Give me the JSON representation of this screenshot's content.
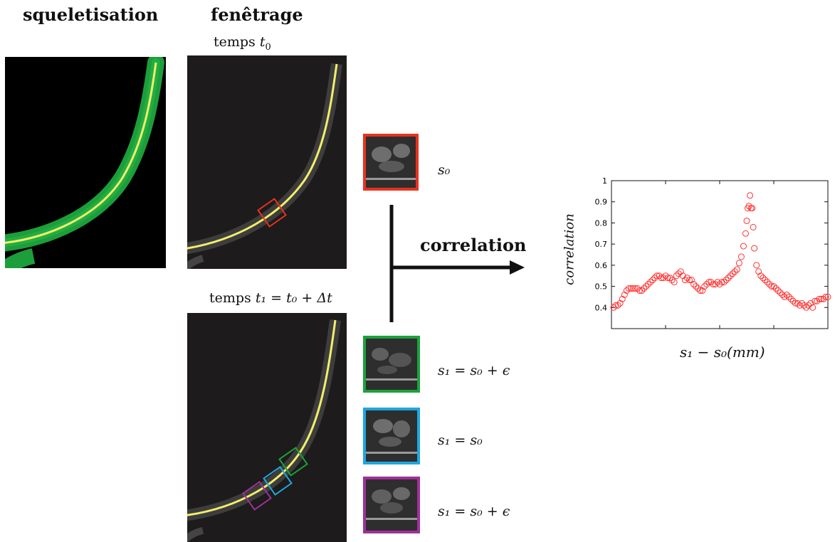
{
  "headings": {
    "skeleton": "squeletisation",
    "windowing": "fenêtrage"
  },
  "time_labels": {
    "t0_prefix": "temps ",
    "t0_var": "t",
    "t0_sub": "0",
    "t1_prefix": "temps ",
    "t1_expr": "t₁ = t₀ + Δt"
  },
  "patch_labels": {
    "red": "s₀",
    "green": "s₁ = s₀ + ϵ",
    "blue": "s₁ = s₀",
    "purple": "s₁ = s₀ + ϵ"
  },
  "arrow_label": "correlation",
  "colors": {
    "root_green": "#1c9e3a",
    "skeleton_yellow": "#f2ef6a",
    "red": "#e8321e",
    "green": "#1aa33a",
    "blue": "#1ea8e0",
    "purple": "#a0309a",
    "marker": "#ff3333"
  },
  "chart_data": {
    "type": "scatter",
    "xlabel": "s₁ − s₀(mm)",
    "ylabel": "correlation",
    "xlim": [
      -1,
      1
    ],
    "ylim": [
      0.3,
      1.0
    ],
    "xticks": [
      "−1",
      "−0.5",
      "0",
      "0.5",
      "1"
    ],
    "yticks": [
      "0.4",
      "0.5",
      "0.6",
      "0.7",
      "0.8",
      "0.9",
      "1"
    ],
    "xtick_values": [
      -1,
      -0.5,
      0,
      0.5,
      1
    ],
    "ytick_values": [
      0.4,
      0.5,
      0.6,
      0.7,
      0.8,
      0.9,
      1.0
    ],
    "marker": "open-circle",
    "series": [
      {
        "x": [
          -0.98,
          -0.96,
          -0.94,
          -0.92,
          -0.9,
          -0.88,
          -0.86,
          -0.84,
          -0.82,
          -0.8,
          -0.78,
          -0.76,
          -0.74,
          -0.72,
          -0.7,
          -0.68,
          -0.66,
          -0.64,
          -0.62,
          -0.6,
          -0.58,
          -0.56,
          -0.54,
          -0.52,
          -0.5,
          -0.48,
          -0.46,
          -0.44,
          -0.42,
          -0.4,
          -0.38,
          -0.36,
          -0.34,
          -0.32,
          -0.3,
          -0.28,
          -0.26,
          -0.24,
          -0.22,
          -0.2,
          -0.18,
          -0.16,
          -0.14,
          -0.12,
          -0.1,
          -0.08,
          -0.06,
          -0.04,
          -0.02,
          0.0,
          0.02,
          0.04,
          0.06,
          0.08,
          0.1,
          0.12,
          0.14,
          0.16,
          0.18,
          0.2,
          0.22,
          0.24,
          0.25,
          0.26,
          0.27,
          0.28,
          0.29,
          0.3,
          0.31,
          0.32,
          0.34,
          0.36,
          0.38,
          0.4,
          0.42,
          0.44,
          0.46,
          0.48,
          0.5,
          0.52,
          0.54,
          0.56,
          0.58,
          0.6,
          0.62,
          0.64,
          0.66,
          0.68,
          0.7,
          0.72,
          0.74,
          0.76,
          0.78,
          0.8,
          0.82,
          0.84,
          0.86,
          0.88,
          0.9,
          0.92,
          0.94,
          0.96,
          0.98,
          1.0
        ],
        "y": [
          0.4,
          0.41,
          0.41,
          0.42,
          0.44,
          0.46,
          0.48,
          0.49,
          0.49,
          0.49,
          0.49,
          0.49,
          0.48,
          0.48,
          0.49,
          0.5,
          0.51,
          0.52,
          0.53,
          0.54,
          0.55,
          0.55,
          0.54,
          0.54,
          0.55,
          0.54,
          0.54,
          0.53,
          0.52,
          0.55,
          0.56,
          0.57,
          0.55,
          0.53,
          0.54,
          0.53,
          0.53,
          0.51,
          0.5,
          0.49,
          0.48,
          0.48,
          0.5,
          0.51,
          0.52,
          0.52,
          0.51,
          0.51,
          0.52,
          0.51,
          0.52,
          0.52,
          0.53,
          0.54,
          0.55,
          0.56,
          0.57,
          0.58,
          0.61,
          0.64,
          0.69,
          0.75,
          0.81,
          0.87,
          0.88,
          0.93,
          0.87,
          0.87,
          0.78,
          0.68,
          0.6,
          0.57,
          0.55,
          0.54,
          0.53,
          0.52,
          0.51,
          0.5,
          0.5,
          0.49,
          0.48,
          0.47,
          0.46,
          0.45,
          0.46,
          0.45,
          0.44,
          0.43,
          0.42,
          0.42,
          0.41,
          0.42,
          0.41,
          0.4,
          0.41,
          0.42,
          0.4,
          0.43,
          0.43,
          0.44,
          0.44,
          0.44,
          0.45,
          0.45
        ]
      }
    ]
  }
}
